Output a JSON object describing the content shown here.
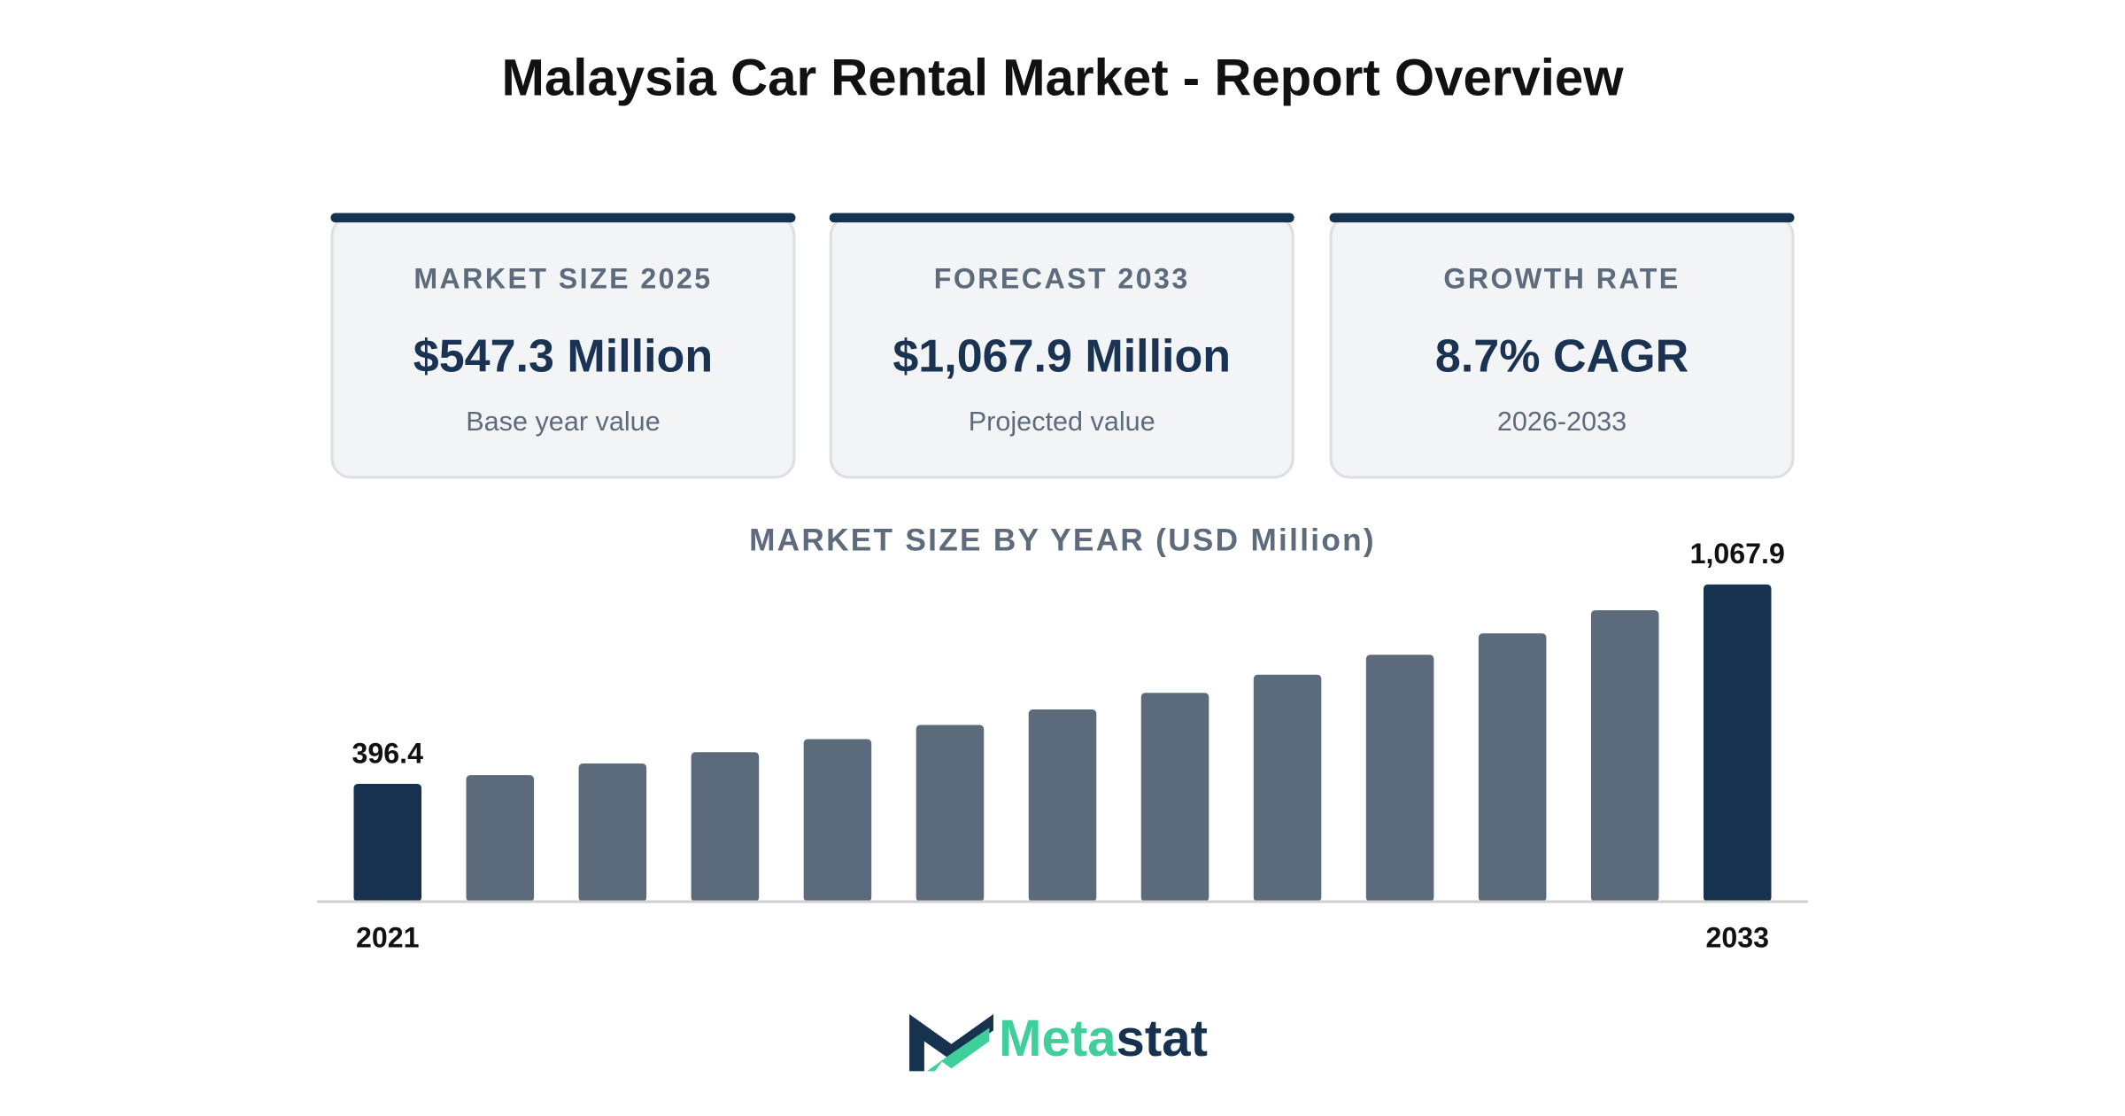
{
  "title": "Malaysia Car Rental Market - Report Overview",
  "cards": [
    {
      "label": "MARKET SIZE 2025",
      "value": "$547.3 Million",
      "sub": "Base year value"
    },
    {
      "label": "FORECAST 2033",
      "value": "$1,067.9 Million",
      "sub": "Projected value"
    },
    {
      "label": "GROWTH RATE",
      "value": "8.7% CAGR",
      "sub": "2026-2033"
    }
  ],
  "chart_data": {
    "type": "bar",
    "title": "MARKET SIZE BY YEAR (USD Million)",
    "categories": [
      "2021",
      null,
      null,
      null,
      null,
      null,
      null,
      null,
      null,
      null,
      null,
      null,
      "2033"
    ],
    "values": [
      396.4,
      426,
      465,
      503,
      547.3,
      595,
      647,
      703,
      764,
      831,
      903,
      981,
      1067.9
    ],
    "value_labels": [
      "396.4",
      null,
      null,
      null,
      null,
      null,
      null,
      null,
      null,
      null,
      null,
      null,
      "1,067.9"
    ],
    "colors": [
      "#17324f",
      "#5b6b7b",
      "#5b6b7b",
      "#5b6b7b",
      "#5b6b7b",
      "#5b6b7b",
      "#5b6b7b",
      "#5b6b7b",
      "#5b6b7b",
      "#5b6b7b",
      "#5b6b7b",
      "#5b6b7b",
      "#17324f"
    ]
  },
  "logo": {
    "first": "Meta",
    "second": "stat"
  }
}
